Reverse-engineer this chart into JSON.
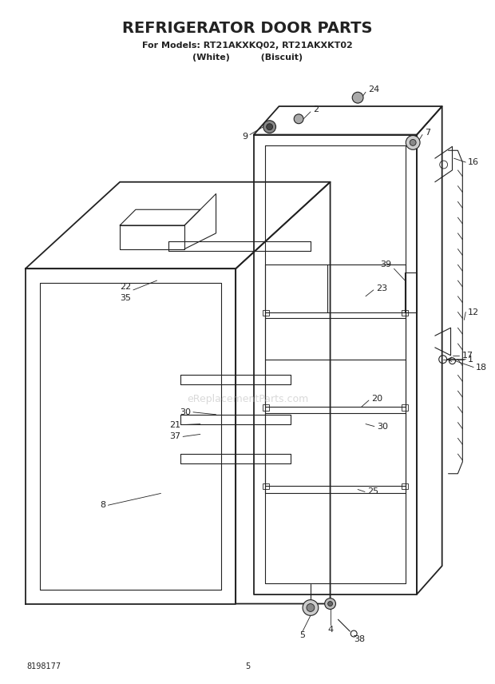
{
  "title": "REFRIGERATOR DOOR PARTS",
  "subtitle1": "For Models: RT21AKXKQ02, RT21AKXKT02",
  "subtitle2": "(White)          (Biscuit)",
  "part_number": "8198177",
  "page": "5",
  "bg_color": "#ffffff",
  "line_color": "#222222",
  "label_color": "#222222",
  "watermark": "eReplacementParts.com",
  "figsize": [
    6.2,
    8.56
  ],
  "dpi": 100
}
